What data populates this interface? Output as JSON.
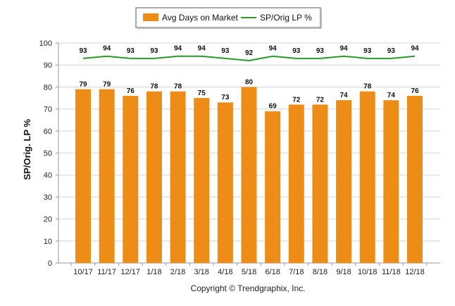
{
  "chart_data": {
    "type": "bar",
    "categories": [
      "10/17",
      "11/17",
      "12/17",
      "1/18",
      "2/18",
      "3/18",
      "4/18",
      "5/18",
      "6/18",
      "7/18",
      "8/18",
      "9/18",
      "10/18",
      "11/18",
      "12/18"
    ],
    "series": [
      {
        "name": "Avg Days on Market",
        "type": "bar",
        "color": "#ee8c18",
        "values": [
          79,
          79,
          76,
          78,
          78,
          75,
          73,
          80,
          69,
          72,
          72,
          74,
          78,
          74,
          76
        ]
      },
      {
        "name": "SP/Orig LP %",
        "type": "line",
        "color": "#2a9a2a",
        "values": [
          93,
          94,
          93,
          93,
          94,
          94,
          93,
          92,
          94,
          93,
          93,
          94,
          93,
          93,
          94
        ]
      }
    ],
    "ylabel": "SP/Orig. LP %",
    "ylim": [
      0,
      100
    ],
    "yticks": [
      0,
      10,
      20,
      30,
      40,
      50,
      60,
      70,
      80,
      90,
      100
    ],
    "grid": true,
    "legend": "top-center",
    "footer": "Copyright © Trendgraphix, Inc."
  }
}
